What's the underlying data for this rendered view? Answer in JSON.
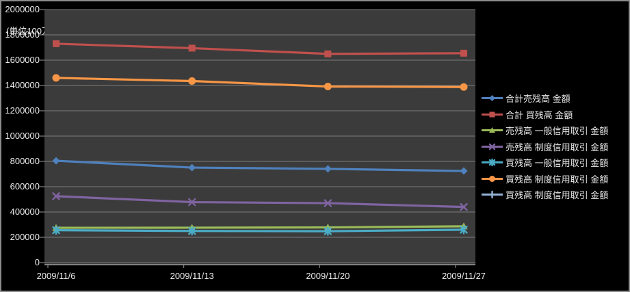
{
  "chart_data": {
    "type": "line",
    "title": "",
    "unit_label": "(単位100万円)",
    "xlabel": "",
    "ylabel": "",
    "categories": [
      "2009/11/6",
      "2009/11/13",
      "2009/11/20",
      "2009/11/27"
    ],
    "ylim": [
      0,
      2000000
    ],
    "ytick_step": 200000,
    "yticks": [
      "0",
      "200000",
      "400000",
      "600000",
      "800000",
      "1000000",
      "1200000",
      "1400000",
      "1600000",
      "1800000",
      "2000000"
    ],
    "grid": true,
    "legend_position": "right",
    "colors": {
      "chart_background": "#000000",
      "plot_background": "#3b3b3b",
      "gridline": "#7d7d7d",
      "axis": "#9a9a9a",
      "text": "#ececec",
      "frame_border": "#8c8c8c"
    },
    "series": [
      {
        "name": "合計売残高 金額",
        "color": "#4F81BD",
        "marker": "diamond",
        "values": [
          805000,
          751000,
          741000,
          724000
        ]
      },
      {
        "name": "合計 買残高 金額",
        "color": "#C0504D",
        "marker": "square",
        "values": [
          1730000,
          1695000,
          1650000,
          1655000
        ]
      },
      {
        "name": "売残高 一般信用取引 金額",
        "color": "#9BBB59",
        "marker": "triangle",
        "values": [
          275000,
          276000,
          278000,
          287000
        ]
      },
      {
        "name": "売残高 制度信用取引 金額",
        "color": "#8064A2",
        "marker": "x",
        "values": [
          525000,
          478000,
          470000,
          440000
        ]
      },
      {
        "name": "買残高 一般信用取引 金額",
        "color": "#4BACC6",
        "marker": "star",
        "values": [
          256000,
          250000,
          248000,
          260000
        ]
      },
      {
        "name": "買残高 制度信用取引 金額",
        "color": "#F79646",
        "marker": "circle",
        "values": [
          1460000,
          1435000,
          1392000,
          1388000
        ]
      },
      {
        "name": "買残高 制度信用取引 金額",
        "color": "#95B3D7",
        "marker": "plus",
        "values": []
      }
    ]
  }
}
